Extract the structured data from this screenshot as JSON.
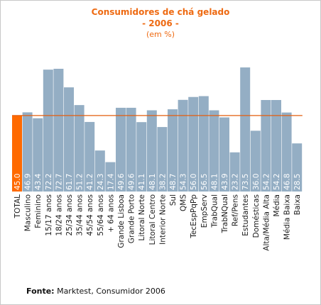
{
  "chart_data": {
    "type": "bar",
    "title": "Consumidores de chá gelado",
    "year_line": "- 2006 -",
    "subtitle": "(em %)",
    "xlabel": "",
    "ylabel": "",
    "ylim": [
      0,
      82
    ],
    "grid": false,
    "legend": "none",
    "reference_line": {
      "value": 45.0
    },
    "categories": [
      "TOTAL",
      "Masculino",
      "Feminino",
      "15/17 anos",
      "18/24 anos",
      "25/34 anos",
      "35/44 anos",
      "45/54 anos",
      "55/64 anos",
      "+ 64 anos",
      "Grande Lisboa",
      "Grande Porto",
      "Litoral Norte",
      "Litoral Centro",
      "Interior Norte",
      "Sul",
      "QMS",
      "TecEspPqPp",
      "EmpServ",
      "TrabQual",
      "TrabNQual",
      "Ref/Pens",
      "Estudantes",
      "Domésticas",
      "Alta/Média Alta",
      "Média",
      "Média Baixa",
      "Baixa"
    ],
    "values": [
      45.0,
      46.9,
      43.4,
      72.2,
      72.7,
      61.7,
      51.2,
      41.2,
      24.3,
      17.4,
      49.6,
      49.6,
      41.1,
      48.1,
      38.2,
      48.7,
      54.3,
      56.0,
      56.5,
      48.1,
      43.9,
      23.2,
      73.5,
      36.0,
      54.2,
      54.2,
      46.8,
      28.5
    ],
    "labels": [
      "45.0",
      "46.9",
      "43.4",
      "72.2",
      "72.7",
      "61.7",
      "51.2",
      "41.2",
      "24.3",
      "17.4",
      "49.6",
      "49.6",
      "41.1",
      "48.1",
      "38.2",
      "48.7",
      "54.3",
      "56.0",
      "56.5",
      "48.1",
      "43.9",
      "23.2",
      "73.5",
      "36.0",
      "54.2",
      "54.2",
      "46.8",
      "28.5"
    ],
    "highlight_index": 0,
    "colors": {
      "bar": "#94aec4",
      "highlight": "#ff6a00",
      "reference_line": "#e45e0e",
      "label": "#ffffff",
      "title": "#ee6a12"
    }
  },
  "footer": {
    "source_label": "Fonte:",
    "source_text": " Marktest, Consumidor 2006"
  }
}
